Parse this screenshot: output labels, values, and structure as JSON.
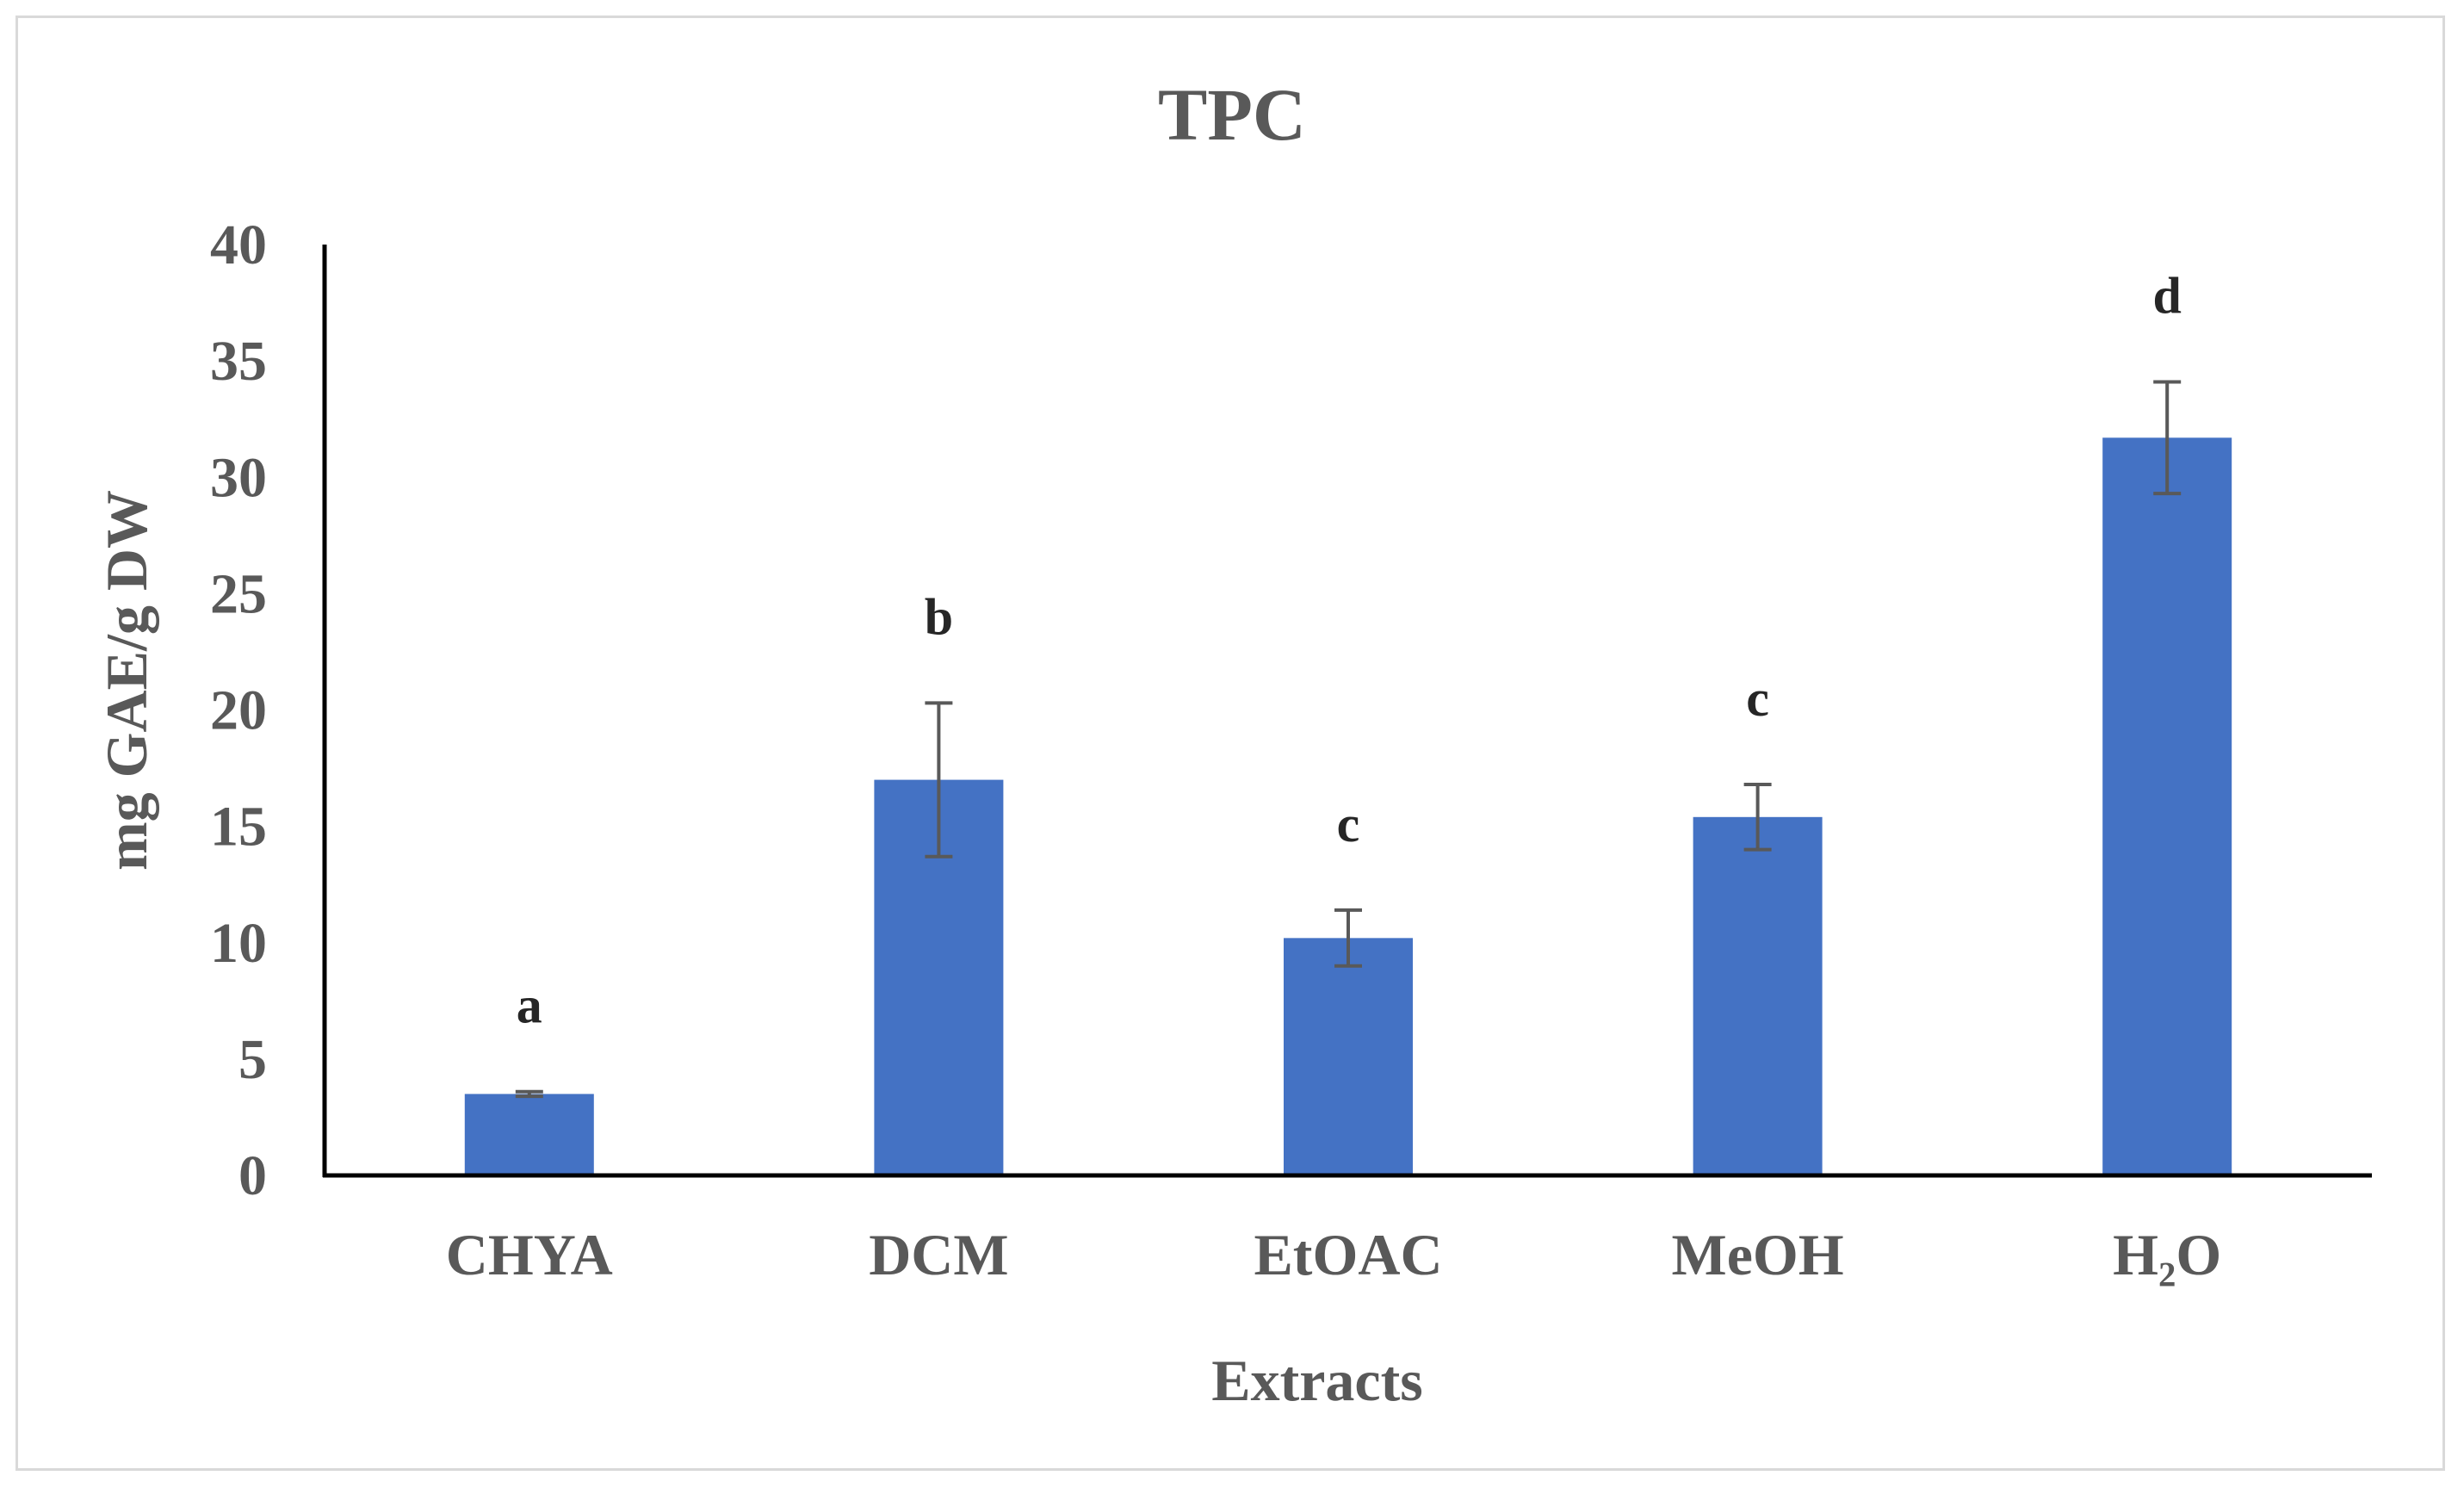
{
  "chart_data": {
    "type": "bar",
    "title": "TPC",
    "xlabel": "Extracts",
    "ylabel": "mg GAE/g DW",
    "categories": [
      "CHYA",
      "DCM",
      "EtOAC",
      "MeOH",
      "H₂O"
    ],
    "values": [
      3.5,
      17.0,
      10.2,
      15.4,
      31.7
    ],
    "errors": [
      0.1,
      3.3,
      1.2,
      1.4,
      2.4
    ],
    "significance_labels": [
      "a",
      "b",
      "c",
      "c",
      "d"
    ],
    "ylim": [
      0,
      40
    ],
    "yticks": [
      0,
      5,
      10,
      15,
      20,
      25,
      30,
      35,
      40
    ],
    "grid": false,
    "legend": "none",
    "colors": {
      "bar": "#4472c4",
      "error_bar": "#595959",
      "axis": "#000000",
      "text": "#595959",
      "frame": "#d9d9d9"
    }
  }
}
